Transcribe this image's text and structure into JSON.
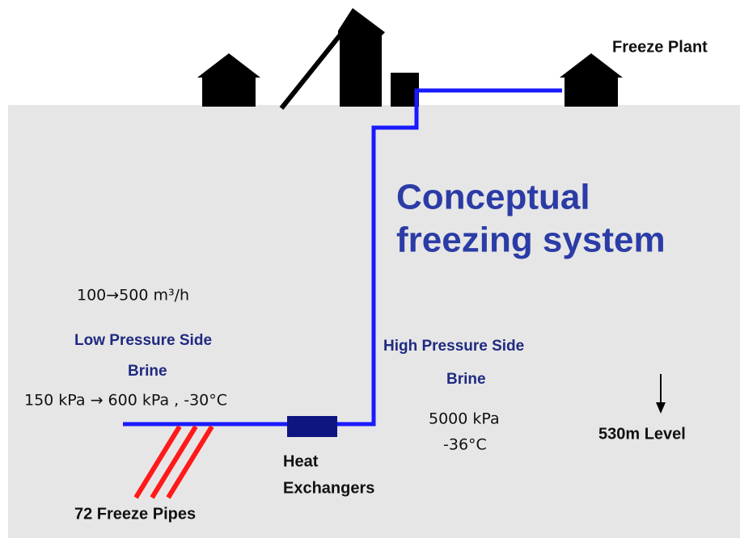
{
  "header": {
    "plant_label": "Freeze Plant"
  },
  "title": {
    "lines": [
      "Conceptual",
      "freezing system"
    ]
  },
  "low_pressure": {
    "flow": "100→500 m³/h",
    "side": "Low Pressure Side",
    "fluid": "Brine",
    "conditions": "150 kPa → 600 kPa , -30°C"
  },
  "high_pressure": {
    "side": "High Pressure Side",
    "fluid": "Brine",
    "pressure": "5000 kPa",
    "temperature": "-36°C"
  },
  "level": "530m Level",
  "heat_exchanger": {
    "lines": [
      "Heat",
      "Exchangers"
    ]
  },
  "freeze_pipes": "72 Freeze Pipes"
}
